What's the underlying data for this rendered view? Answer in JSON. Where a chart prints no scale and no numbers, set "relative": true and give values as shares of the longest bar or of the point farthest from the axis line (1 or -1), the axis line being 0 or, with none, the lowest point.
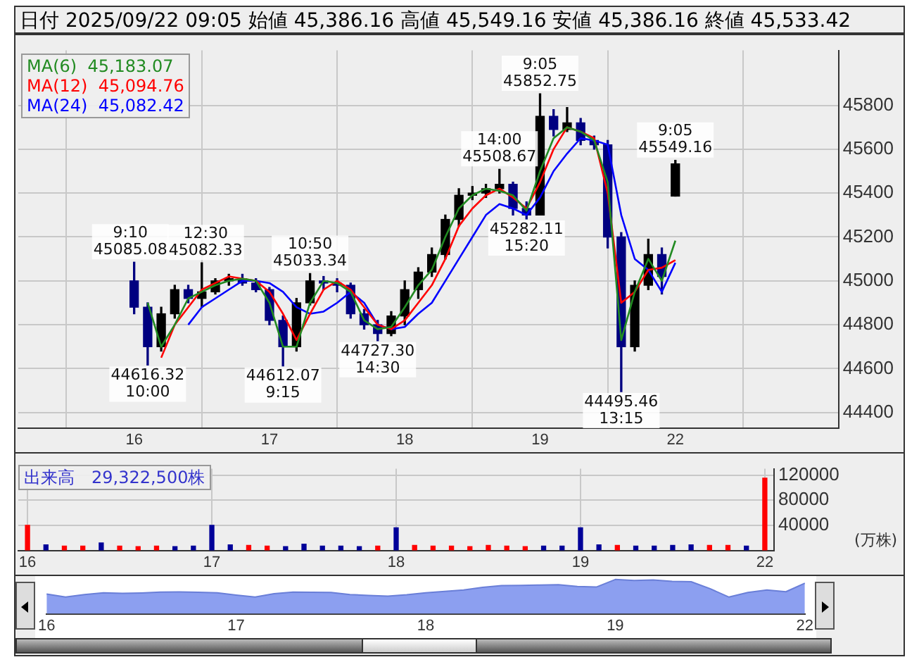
{
  "chart_data": [
    {
      "type": "candlestick",
      "title": "日付 2025/09/22 09:05 始値 45,386.16 高値 45,549.16 安値 45,386.16 終値 45,533.42",
      "categories": [
        "16",
        null,
        null,
        null,
        null,
        null,
        null,
        null,
        null,
        null,
        "17",
        null,
        null,
        null,
        null,
        null,
        null,
        null,
        null,
        null,
        "18",
        null,
        null,
        null,
        null,
        null,
        null,
        null,
        null,
        null,
        "19",
        null,
        null,
        null,
        null,
        null,
        null,
        null,
        null,
        null,
        "22"
      ],
      "ohlc": [
        [
          45000,
          45085.08,
          44850,
          44880
        ],
        [
          44880,
          44900,
          44616.32,
          44700
        ],
        [
          44700,
          44880,
          44680,
          44850
        ],
        [
          44850,
          44980,
          44830,
          44960
        ],
        [
          44960,
          44980,
          44900,
          44920
        ],
        [
          44920,
          45082.33,
          44880,
          44950
        ],
        [
          44950,
          45010,
          44940,
          45000
        ],
        [
          45000,
          45030,
          44980,
          45010
        ],
        [
          45010,
          45030,
          44980,
          44990
        ],
        [
          44990,
          45010,
          44950,
          44960
        ],
        [
          44960,
          44970,
          44800,
          44820
        ],
        [
          44820,
          44840,
          44612.07,
          44700
        ],
        [
          44700,
          44920,
          44680,
          44900
        ],
        [
          44900,
          45033.34,
          44890,
          45000
        ],
        [
          45000,
          45020,
          44960,
          44990
        ],
        [
          44990,
          45010,
          44950,
          44980
        ],
        [
          44980,
          44990,
          44830,
          44850
        ],
        [
          44850,
          44870,
          44780,
          44800
        ],
        [
          44800,
          44820,
          44727.3,
          44760
        ],
        [
          44760,
          44860,
          44750,
          44840
        ],
        [
          44840,
          45000,
          44800,
          44960
        ],
        [
          44960,
          45060,
          44920,
          45040
        ],
        [
          45040,
          45150,
          45020,
          45120
        ],
        [
          45120,
          45300,
          45100,
          45280
        ],
        [
          45280,
          45420,
          45250,
          45390
        ],
        [
          45390,
          45430,
          45370,
          45400
        ],
        [
          45400,
          45440,
          45380,
          45420
        ],
        [
          45420,
          45508.67,
          45400,
          45440
        ],
        [
          45440,
          45450,
          45300,
          45330
        ],
        [
          45330,
          45360,
          45282.11,
          45300
        ],
        [
          45300,
          45852.75,
          45300,
          45750
        ],
        [
          45750,
          45780,
          45660,
          45690
        ],
        [
          45690,
          45790,
          45680,
          45720
        ],
        [
          45720,
          45740,
          45620,
          45640
        ],
        [
          45640,
          45660,
          45600,
          45620
        ],
        [
          45620,
          45640,
          45150,
          45200
        ],
        [
          45200,
          45220,
          44495.46,
          44700
        ],
        [
          44700,
          45000,
          44680,
          44980
        ],
        [
          44980,
          45190,
          44960,
          45120
        ],
        [
          45120,
          45150,
          44940,
          45020
        ],
        [
          45386.16,
          45549.16,
          45386.16,
          45533.42
        ]
      ],
      "colors": [
        "#000080",
        "#000080",
        "#000000",
        "#000000",
        "#000080",
        "#000000",
        "#000000",
        "#000000",
        "#000080",
        "#000080",
        "#000080",
        "#000080",
        "#000000",
        "#000000",
        "#000080",
        "#000080",
        "#000080",
        "#000080",
        "#000080",
        "#000000",
        "#000000",
        "#000000",
        "#000000",
        "#000000",
        "#000000",
        "#000000",
        "#000000",
        "#000000",
        "#000080",
        "#000080",
        "#000000",
        "#000080",
        "#000000",
        "#000080",
        "#000080",
        "#000080",
        "#000080",
        "#000000",
        "#000000",
        "#000080",
        "#000000"
      ],
      "series": [
        {
          "type": "line",
          "name": "MA(6)",
          "color": "#228b22",
          "values": [
            null,
            44900,
            44700,
            44800,
            44920,
            44950,
            44980,
            45000,
            45010,
            45000,
            44900,
            44700,
            44700,
            44900,
            45000,
            44990,
            44950,
            44820,
            44780,
            44790,
            44880,
            44980,
            45050,
            45200,
            45330,
            45390,
            45420,
            45410,
            45390,
            45320,
            45500,
            45650,
            45700,
            45680,
            45640,
            45450,
            44730,
            44950,
            45100,
            45000,
            45183.07
          ]
        },
        {
          "type": "line",
          "name": "MA(12)",
          "color": "#ff0000",
          "values": [
            null,
            null,
            44650,
            44800,
            44880,
            44960,
            44990,
            45020,
            45010,
            45000,
            44950,
            44850,
            44730,
            44850,
            44960,
            45000,
            44960,
            44880,
            44800,
            44780,
            44820,
            44900,
            44980,
            45100,
            45250,
            45330,
            45390,
            45420,
            45380,
            45330,
            45450,
            45600,
            45700,
            45680,
            45650,
            45400,
            44900,
            44950,
            45050,
            45060,
            45094.76
          ]
        },
        {
          "type": "line",
          "name": "MA(24)",
          "color": "#0000ff",
          "values": [
            null,
            null,
            null,
            null,
            44800,
            44880,
            44920,
            44960,
            45000,
            45000,
            44990,
            44950,
            44880,
            44850,
            44860,
            44900,
            44950,
            44900,
            44800,
            44780,
            44790,
            44850,
            44900,
            45000,
            45100,
            45200,
            45300,
            45350,
            45330,
            45300,
            45380,
            45500,
            45580,
            45650,
            45640,
            45620,
            45300,
            45100,
            45050,
            44950,
            45082.42
          ]
        }
      ],
      "annotations": [
        {
          "text": "9:10\n45085.08",
          "y": 45085.08
        },
        {
          "text": "12:30\n45082.33",
          "y": 45082.33
        },
        {
          "text": "44616.32\n10:00",
          "y": 44616.32
        },
        {
          "text": "44612.07\n9:15",
          "y": 44612.07
        },
        {
          "text": "10:50\n45033.34",
          "y": 45033.34
        },
        {
          "text": "44727.30\n14:30",
          "y": 44727.3
        },
        {
          "text": "14:00\n45508.67",
          "y": 45508.67
        },
        {
          "text": "45282.11\n15:20",
          "y": 45282.11
        },
        {
          "text": "9:05\n45852.75",
          "y": 45852.75
        },
        {
          "text": "44495.46\n13:15",
          "y": 44495.46
        },
        {
          "text": "9:05\n45549.16",
          "y": 45549.16
        },
        "45,183.07",
        "45,094.76",
        "45,082.42"
      ],
      "ylim": [
        44330,
        46050
      ],
      "yticks": [
        44400,
        44600,
        44800,
        45000,
        45200,
        45400,
        45600,
        45800
      ],
      "grid": true
    },
    {
      "type": "bar",
      "title": "出来高　29,322,500株",
      "ylabel": "(万株)",
      "categories": [
        "16",
        null,
        null,
        null,
        null,
        null,
        null,
        null,
        null,
        null,
        "17",
        null,
        null,
        null,
        null,
        null,
        null,
        null,
        null,
        null,
        "18",
        null,
        null,
        null,
        null,
        null,
        null,
        null,
        null,
        null,
        "19",
        null,
        null,
        null,
        null,
        null,
        null,
        null,
        null,
        null,
        "22"
      ],
      "values": [
        40000,
        9000,
        7000,
        7000,
        12000,
        7000,
        6000,
        7000,
        6000,
        7000,
        40000,
        9000,
        8000,
        7000,
        6000,
        10000,
        7000,
        7000,
        6000,
        7000,
        36000,
        8000,
        7000,
        7000,
        6000,
        8000,
        7000,
        6000,
        7000,
        7000,
        36000,
        9000,
        8000,
        7000,
        7000,
        8000,
        9000,
        8000,
        8000,
        7000,
        115000
      ],
      "colors": [
        "#ff0000",
        "#000099",
        "#ff0000",
        "#ff0000",
        "#000099",
        "#ff0000",
        "#ff0000",
        "#ff0000",
        "#000099",
        "#000099",
        "#000099",
        "#000099",
        "#ff0000",
        "#ff0000",
        "#000099",
        "#000099",
        "#000099",
        "#000099",
        "#000099",
        "#ff0000",
        "#000099",
        "#ff0000",
        "#ff0000",
        "#ff0000",
        "#ff0000",
        "#ff0000",
        "#ff0000",
        "#ff0000",
        "#000099",
        "#000099",
        "#000099",
        "#000099",
        "#ff0000",
        "#000099",
        "#000099",
        "#000099",
        "#000099",
        "#ff0000",
        "#ff0000",
        "#000099",
        "#ff0000"
      ],
      "ylim": [
        0,
        130000
      ],
      "yticks": [
        40000,
        80000,
        120000
      ],
      "grid": true
    },
    {
      "type": "area",
      "relative": true,
      "color": "#8c9ff0",
      "categories": [
        "16",
        null,
        null,
        null,
        null,
        null,
        null,
        null,
        null,
        null,
        "17",
        null,
        null,
        null,
        null,
        null,
        null,
        null,
        null,
        null,
        "18",
        null,
        null,
        null,
        null,
        null,
        null,
        null,
        null,
        null,
        "19",
        null,
        null,
        null,
        null,
        null,
        null,
        null,
        null,
        null,
        "22"
      ],
      "values": [
        0.576,
        0.488,
        0.561,
        0.615,
        0.595,
        0.61,
        0.634,
        0.639,
        0.629,
        0.615,
        0.546,
        0.488,
        0.585,
        0.634,
        0.629,
        0.624,
        0.561,
        0.537,
        0.517,
        0.556,
        0.615,
        0.654,
        0.693,
        0.771,
        0.824,
        0.829,
        0.839,
        0.849,
        0.795,
        0.78,
        1,
        0.971,
        0.985,
        0.946,
        0.937,
        0.732,
        0.488,
        0.624,
        0.693,
        0.644,
        0.894
      ],
      "tick_labels": "x"
    }
  ]
}
